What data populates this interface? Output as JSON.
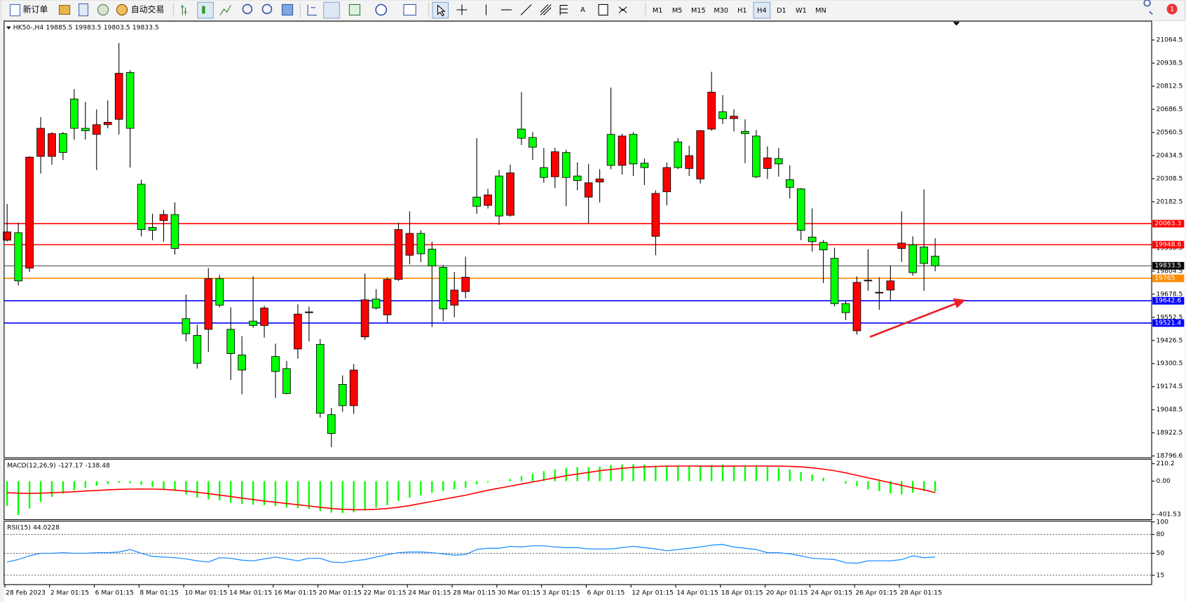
{
  "toolbar": {
    "new_order": "新订单",
    "auto_trading": "自动交易",
    "notifications": "1",
    "timeframes": [
      {
        "label": "M1"
      },
      {
        "label": "M5"
      },
      {
        "label": "M15"
      },
      {
        "label": "M30"
      },
      {
        "label": "H1"
      },
      {
        "label": "H4",
        "active": true
      },
      {
        "label": "D1"
      },
      {
        "label": "W1"
      },
      {
        "label": "MN"
      }
    ]
  },
  "chart_data": [
    {
      "type": "candlestick",
      "title": "HK50-,H4",
      "up_color": "#ff0000",
      "down_color": "#00ff00",
      "categories": [
        "28 Feb 2023",
        null,
        null,
        null,
        "2 Mar 01:15",
        null,
        null,
        null,
        "6 Mar 01:15",
        null,
        null,
        null,
        "8 Mar 01:15",
        null,
        null,
        null,
        "10 Mar 01:15",
        null,
        null,
        null,
        "14 Mar 01:15",
        null,
        null,
        null,
        "16 Mar 01:15",
        null,
        null,
        null,
        "20 Mar 01:15",
        null,
        null,
        null,
        "22 Mar 01:15",
        null,
        null,
        null,
        "24 Mar 01:15",
        null,
        null,
        null,
        "28 Mar 01:15",
        null,
        null,
        null,
        "30 Mar 01:15",
        null,
        null,
        null,
        "3 Apr 01:15",
        null,
        null,
        null,
        "6 Apr 01:15",
        null,
        null,
        null,
        "12 Apr 01:15",
        null,
        null,
        null,
        "14 Apr 01:15",
        null,
        null,
        null,
        "18 Apr 01:15",
        null,
        null,
        null,
        "20 Apr 01:15",
        null,
        null,
        null,
        "24 Apr 01:15",
        null,
        null,
        null,
        "26 Apr 01:15",
        null,
        null,
        null,
        "28 Apr 01:15",
        null,
        null,
        null
      ],
      "open": [
        19973,
        20014,
        19821,
        20430,
        20430,
        20554,
        20743,
        20583,
        20550,
        20603,
        20632,
        20887,
        20278,
        20043,
        20080,
        20113,
        19545,
        19454,
        19487,
        19763,
        19487,
        19347,
        19532,
        19508,
        19339,
        19273,
        19380,
        19578,
        19405,
        19022,
        19187,
        19071,
        19446,
        19652,
        19566,
        19759,
        19891,
        20010,
        19924,
        19825,
        19619,
        19693,
        20208,
        20163,
        20323,
        20109,
        20579,
        20533,
        20369,
        20319,
        20451,
        20323,
        20208,
        20290,
        20550,
        20381,
        20550,
        20393,
        19994,
        20237,
        20509,
        20364,
        20307,
        20579,
        20673,
        20636,
        20566,
        20541,
        20364,
        20418,
        20303,
        20253,
        19990,
        19961,
        19874,
        19627,
        19479,
        19751,
        19687,
        19701,
        19928,
        19948,
        19936,
        19885.5
      ],
      "high": [
        20171,
        20068,
        20430,
        20644,
        20562,
        20562,
        20797,
        20727,
        20686,
        20735,
        21048,
        20900,
        20303,
        20117,
        20138,
        20179,
        19677,
        19512,
        19821,
        19784,
        19607,
        19450,
        19776,
        19615,
        19409,
        19314,
        19623,
        19611,
        19434,
        19059,
        19236,
        19298,
        19792,
        19706,
        19771,
        20068,
        20130,
        20027,
        19965,
        19837,
        19800,
        19883,
        20529,
        20253,
        20356,
        20385,
        20780,
        20562,
        20476,
        20476,
        20467,
        20397,
        20389,
        20360,
        20805,
        20554,
        20562,
        20418,
        20245,
        20397,
        20529,
        20488,
        20574,
        20891,
        20764,
        20686,
        20632,
        20574,
        20484,
        20476,
        20381,
        20257,
        20146,
        19973,
        19932,
        19644,
        19776,
        19924,
        19771,
        19833,
        20130,
        19994,
        20249,
        19983.5
      ],
      "low": [
        19965,
        19726,
        19800,
        20336,
        20385,
        20410,
        20521,
        20521,
        20356,
        20583,
        20550,
        20369,
        19994,
        19973,
        19965,
        19895,
        19421,
        19273,
        19364,
        19607,
        19211,
        19133,
        19496,
        19442,
        19113,
        19133,
        19327,
        19421,
        19005,
        18845,
        19038,
        19026,
        19430,
        19594,
        19524,
        19751,
        19841,
        19854,
        19500,
        19532,
        19553,
        19656,
        20117,
        20146,
        20056,
        20101,
        20492,
        20410,
        20286,
        20257,
        20158,
        20245,
        20064,
        20179,
        20360,
        20331,
        20323,
        20274,
        19891,
        20163,
        20360,
        20323,
        20282,
        20570,
        20607,
        20566,
        20393,
        20311,
        20307,
        20319,
        20200,
        19973,
        19911,
        19739,
        19611,
        19537,
        19458,
        19697,
        19594,
        19644,
        19854,
        19780,
        19697,
        19803.5
      ],
      "close": [
        20018,
        19751,
        20426,
        20583,
        20554,
        20451,
        20583,
        20570,
        20603,
        20616,
        20883,
        20583,
        20031,
        20027,
        20113,
        19928,
        19463,
        19302,
        19763,
        19619,
        19355,
        19265,
        19508,
        19603,
        19257,
        19137,
        19570,
        19582,
        19030,
        18919,
        19071,
        19265,
        19648,
        19603,
        19759,
        20031,
        20010,
        19899,
        19833,
        19598,
        19701,
        19771,
        20158,
        20220,
        20105,
        20340,
        20529,
        20480,
        20315,
        20455,
        20315,
        20298,
        20286,
        20307,
        20381,
        20541,
        20389,
        20369,
        20228,
        20369,
        20369,
        20434,
        20570,
        20780,
        20636,
        20649,
        20554,
        20319,
        20422,
        20389,
        20261,
        20027,
        19965,
        19920,
        19627,
        19578,
        19743,
        19755,
        19689,
        19751,
        19957,
        19796,
        19846,
        19833.5
      ],
      "ylim": [
        18787,
        21159
      ],
      "yticks": [
        21064.5,
        20938.5,
        20812.5,
        20686.5,
        20560.5,
        20434.5,
        20308.5,
        20182.5,
        19930.5,
        19804.5,
        19678.5,
        19552.5,
        19426.5,
        19300.5,
        19174.5,
        19048.5,
        18922.5,
        18796.6
      ],
      "hlines": [
        {
          "value": 20063.3,
          "color": "#ff0000"
        },
        {
          "value": 19948.6,
          "color": "#ff0000"
        },
        {
          "value": 19833.5,
          "color": "#000000"
        },
        {
          "value": 19765.0,
          "color": "#ff8c00"
        },
        {
          "value": 19642.6,
          "color": "#0000ff"
        },
        {
          "value": 19521.4,
          "color": "#0000ff"
        }
      ]
    },
    {
      "type": "macd",
      "title": "MACD(12,26,9)",
      "color": "#00ff00",
      "signal_color": "#ff0000",
      "values": [
        -300,
        -410,
        -330,
        -250,
        -190,
        -150,
        -110,
        -80,
        -55,
        -35,
        -20,
        -25,
        -45,
        -70,
        -95,
        -120,
        -160,
        -200,
        -220,
        -230,
        -260,
        -275,
        -285,
        -290,
        -300,
        -320,
        -325,
        -335,
        -360,
        -380,
        -385,
        -375,
        -340,
        -320,
        -290,
        -240,
        -200,
        -170,
        -140,
        -120,
        -100,
        -80,
        -40,
        -15,
        5,
        25,
        60,
        90,
        120,
        140,
        160,
        170,
        170,
        175,
        195,
        200,
        205,
        200,
        185,
        185,
        180,
        180,
        180,
        195,
        200,
        190,
        185,
        180,
        170,
        160,
        140,
        110,
        80,
        40,
        0,
        -30,
        -60,
        -100,
        -120,
        -150,
        -160,
        -140,
        -120,
        -127.17
      ],
      "signal": [
        -140,
        -145,
        -148,
        -145,
        -140,
        -135,
        -128,
        -120,
        -112,
        -105,
        -100,
        -96,
        -95,
        -96,
        -100,
        -108,
        -120,
        -135,
        -150,
        -168,
        -185,
        -205,
        -222,
        -240,
        -255,
        -270,
        -285,
        -300,
        -315,
        -330,
        -340,
        -345,
        -345,
        -340,
        -330,
        -315,
        -295,
        -270,
        -245,
        -220,
        -195,
        -170,
        -140,
        -110,
        -85,
        -60,
        -35,
        -10,
        15,
        40,
        65,
        85,
        105,
        125,
        140,
        155,
        165,
        172,
        177,
        180,
        182,
        182,
        181,
        180,
        180,
        181,
        182,
        182,
        181,
        180,
        178,
        172,
        160,
        145,
        125,
        100,
        70,
        40,
        10,
        -20,
        -50,
        -80,
        -105,
        -138.48
      ],
      "ylim": [
        -465,
        264
      ],
      "yticks": [
        210.2,
        {
          "value": 0,
          "label": "0.00"
        },
        -401.53
      ]
    },
    {
      "type": "line",
      "title": "RSI(15)",
      "color": "#1e90ff",
      "values": [
        36,
        40,
        46,
        50,
        50,
        51,
        50,
        50,
        51,
        51,
        52,
        56,
        50,
        45,
        44,
        43,
        41,
        38,
        36,
        43,
        42,
        39,
        38,
        41,
        44,
        41,
        38,
        42,
        42,
        36,
        35,
        38,
        40,
        44,
        48,
        51,
        52,
        52,
        51,
        49,
        47,
        48,
        56,
        58,
        58,
        61,
        60,
        62,
        62,
        60,
        59,
        59,
        57,
        57,
        57,
        59,
        61,
        59,
        57,
        54,
        56,
        58,
        60,
        63,
        64,
        60,
        58,
        56,
        51,
        51,
        49,
        46,
        42,
        41,
        40,
        35,
        34,
        38,
        38,
        38,
        40,
        46,
        43,
        44.0228
      ],
      "ylim": [
        0,
        100
      ],
      "yticks": [
        100,
        80,
        50,
        15
      ]
    }
  ]
}
